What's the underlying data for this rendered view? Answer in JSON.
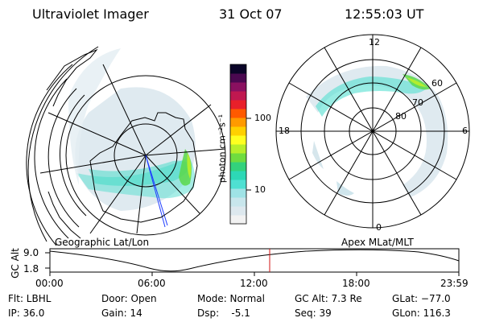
{
  "header": {
    "instrument": "Ultraviolet Imager",
    "date": "31 Oct 07",
    "time": "12:55:03 UT"
  },
  "colorbar": {
    "unit_label": "photon cm⁻²s⁻¹",
    "ticks": [
      "100",
      "10"
    ],
    "scale": "log",
    "colors": [
      "#f2f2f2",
      "#dde8ee",
      "#c8e6ec",
      "#9fe3e6",
      "#4fe0d2",
      "#2dd8b6",
      "#33d27c",
      "#6fdc3f",
      "#b8ee2a",
      "#ffff20",
      "#ffd000",
      "#ff9a00",
      "#ff5a00",
      "#e8202a",
      "#c01850",
      "#8a1060",
      "#4a0850",
      "#0a0428"
    ]
  },
  "maps": {
    "geo_label": "Geographic Lat/Lon",
    "apex_label": "Apex MLat/MLT",
    "mlt_labels": [
      "12",
      "18",
      "6",
      "0"
    ],
    "mlat_labels": [
      "60",
      "70",
      "80"
    ]
  },
  "plot": {
    "ylabel": "GC Alt",
    "ytick_high": "9.0",
    "ytick_low": "1.8",
    "xticks": [
      "00:00",
      "06:00",
      "12:00",
      "18:00",
      "23:59"
    ],
    "current_time_color": "#d01010"
  },
  "info": {
    "flt": "Flt: LBHL",
    "ip": "IP: 36.0",
    "door": "Door: Open",
    "gain": "Gain: 14",
    "mode": "Mode: Normal",
    "dsp": "Dsp:    -5.1",
    "gcalt": "GC Alt: 7.3 Re",
    "seq": "Seq: 39",
    "glat": "GLat: −77.0",
    "glon": "GLon: 116.3"
  }
}
